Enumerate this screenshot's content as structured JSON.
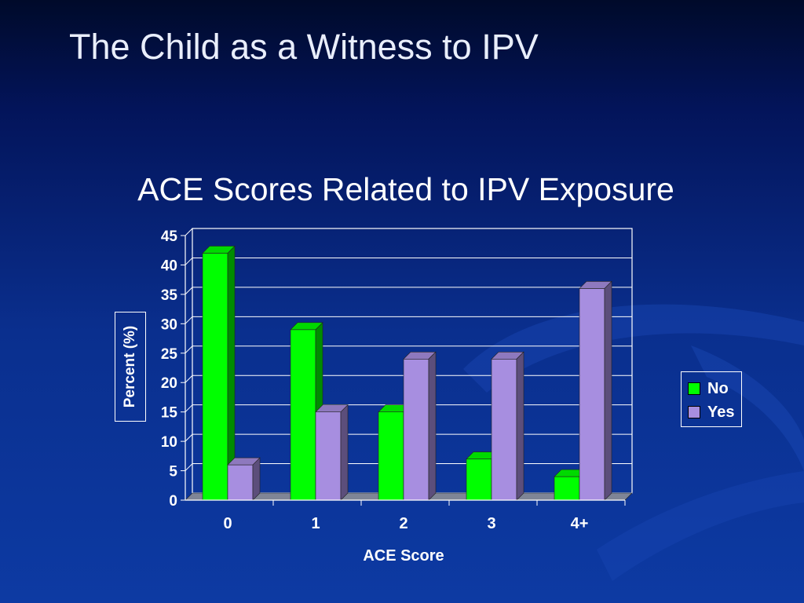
{
  "slide": {
    "title": "The Child as a Witness to IPV"
  },
  "chart_data": {
    "type": "bar",
    "title": "ACE Scores Related to IPV Exposure",
    "xlabel": "ACE Score",
    "ylabel": "Percent (%)",
    "categories": [
      "0",
      "1",
      "2",
      "3",
      "4+"
    ],
    "series": [
      {
        "name": "No",
        "values": [
          42,
          29,
          15,
          7,
          4
        ],
        "color": "#00ff00"
      },
      {
        "name": "Yes",
        "values": [
          6,
          15,
          24,
          24,
          36
        ],
        "color": "#a78ee0"
      }
    ],
    "ylim": [
      0,
      45
    ],
    "yticks": [
      0,
      5,
      10,
      15,
      20,
      25,
      30,
      35,
      40,
      45
    ],
    "grid": true,
    "legend": "right",
    "style": "3d-clustered-column"
  }
}
